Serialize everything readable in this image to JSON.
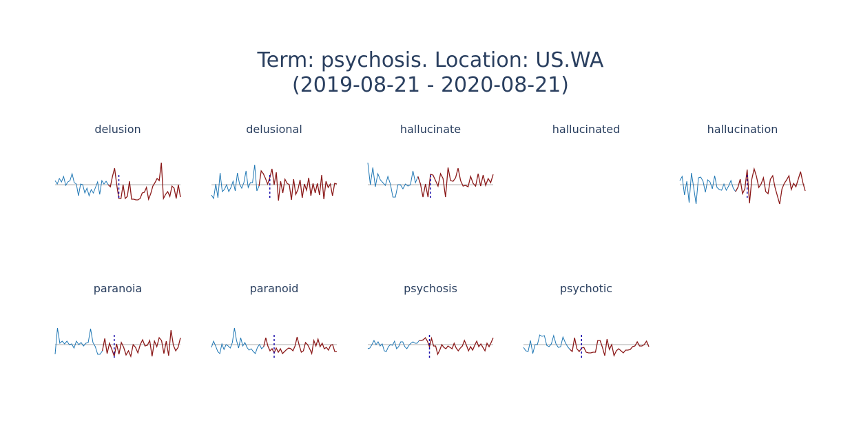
{
  "title": {
    "line1": "Term: psychosis. Location: US.WA",
    "line2": "(2019-08-21 - 2020-08-21)"
  },
  "colors": {
    "before": "#1f77b4",
    "after": "#8b1a1a",
    "baseline": "#c8c8c8",
    "marker": "#1a0dab",
    "text": "#2a3f5f"
  },
  "chart_data": [
    {
      "type": "line",
      "title": "delusion",
      "before": [
        0.6,
        0.1,
        0.9,
        0.4,
        1.2,
        -0.1,
        0.4,
        0.6,
        1.6,
        0.3,
        0.1,
        -1.6,
        0.1,
        0.0,
        -1.2,
        -0.5,
        -1.6,
        -0.7,
        -1.2,
        -0.4,
        0.4,
        -1.4,
        0.6,
        0.1,
        0.5,
        0.0
      ],
      "after": [
        -0.3,
        1.2,
        2.4,
        0.0,
        -2.0,
        -2.0,
        0.0,
        -2.0,
        -1.7,
        0.5,
        -2.1,
        -2.1,
        -2.2,
        -2.2,
        -2.0,
        -1.2,
        -1.1,
        -0.4,
        -2.1,
        -1.3,
        -0.2,
        0.3,
        0.9,
        0.6,
        3.2,
        -2.0,
        -1.4,
        -1.0,
        -1.7,
        -0.2,
        -0.5,
        -2.0,
        0.0,
        -1.8
      ]
    },
    {
      "type": "line",
      "title": "delusional",
      "before": [
        -1.5,
        -2.0,
        0.1,
        -1.9,
        1.7,
        -1.0,
        -0.7,
        0.0,
        -1.0,
        -0.4,
        0.5,
        -0.9,
        1.7,
        0.1,
        -0.5,
        0.3,
        2.0,
        -0.4,
        0.3,
        0.3,
        2.9,
        -0.9,
        -0.2
      ],
      "after": [
        2.0,
        1.6,
        0.9,
        0.1,
        1.0,
        2.3,
        0.0,
        1.8,
        -2.3,
        0.5,
        -1.2,
        0.8,
        0.2,
        0.0,
        -2.2,
        0.8,
        -1.4,
        -0.7,
        0.7,
        -1.9,
        0.1,
        -0.8,
        1.0,
        -1.6,
        0.2,
        -1.2,
        0.2,
        -1.5,
        1.4,
        -2.1,
        0.5,
        -0.4,
        0.1,
        -1.6,
        0.2,
        0.1
      ]
    },
    {
      "type": "line",
      "title": "hallucinate",
      "before": [
        3.2,
        0.0,
        2.5,
        -0.3,
        1.6,
        0.7,
        0.3,
        -0.1,
        1.2,
        0.1,
        -1.8,
        -1.8,
        0.0,
        0.0,
        -0.6,
        0.1,
        -0.2,
        0.0,
        2.0,
        0.3,
        1.2
      ],
      "after": [
        0.1,
        -1.8,
        0.1,
        -1.8,
        1.5,
        1.4,
        0.6,
        -0.2,
        1.6,
        0.9,
        -1.8,
        2.5,
        0.6,
        0.5,
        1.0,
        2.4,
        0.6,
        -0.2,
        -0.1,
        -0.3,
        1.2,
        0.2,
        -0.2,
        1.6,
        -0.2,
        1.4,
        -0.1,
        0.9,
        0.3,
        1.5
      ]
    },
    {
      "type": "line",
      "title": "hallucinated",
      "before": [],
      "after": []
    },
    {
      "type": "line",
      "title": "hallucination",
      "before": [
        0.6,
        1.2,
        -1.5,
        0.5,
        -2.6,
        1.7,
        -0.5,
        -2.8,
        1.0,
        1.1,
        0.5,
        -1.1,
        0.7,
        0.4,
        -0.6,
        1.3,
        -0.4,
        -0.7,
        -0.8,
        0.1,
        -0.8,
        -0.2,
        0.6,
        -0.5,
        -1.0
      ],
      "after": [
        -0.4,
        0.8,
        -1.3,
        -0.6,
        2.2,
        -2.7,
        0.8,
        2.3,
        1.2,
        -0.4,
        0.1,
        1.0,
        -1.0,
        -1.3,
        0.8,
        1.3,
        -0.4,
        -1.6,
        -2.8,
        -0.6,
        0.2,
        0.7,
        1.3,
        -0.7,
        0.2,
        -0.3,
        0.8,
        1.9,
        0.3,
        -0.9
      ]
    },
    {
      "type": "line",
      "title": "paranoia",
      "before": [
        -1.4,
        2.4,
        0.2,
        0.5,
        0.1,
        0.5,
        0.0,
        0.1,
        -0.5,
        0.5,
        0.0,
        0.3,
        -0.2,
        0.2,
        0.3,
        2.3,
        0.3,
        -0.3,
        -1.4,
        -1.4,
        -0.9
      ],
      "after": [
        0.9,
        -1.3,
        0.2,
        -0.7,
        -1.7,
        0.1,
        -1.4,
        0.3,
        -0.4,
        -1.5,
        -0.9,
        -1.7,
        0.0,
        -0.4,
        -1.2,
        0.0,
        0.7,
        -0.2,
        -0.1,
        0.6,
        -1.7,
        0.5,
        -0.3,
        1.0,
        0.6,
        -1.3,
        0.5,
        -1.6,
        2.1,
        -0.1,
        -0.9,
        -0.4,
        1.0
      ]
    },
    {
      "type": "line",
      "title": "paranoid",
      "before": [
        -0.4,
        0.5,
        -0.2,
        -1.0,
        -1.3,
        0.1,
        -0.7,
        0.0,
        -0.2,
        -0.5,
        0.3,
        2.4,
        0.6,
        -0.5,
        1.0,
        -0.2,
        0.3,
        -0.4,
        -0.8,
        -0.6,
        -1.0,
        -1.3,
        -0.4,
        0.0,
        -0.6,
        -0.3
      ],
      "after": [
        1.0,
        -0.2,
        -0.9,
        -0.6,
        -1.2,
        -0.5,
        -1.1,
        -0.6,
        -1.3,
        -1.0,
        -0.7,
        -0.5,
        -0.6,
        -0.9,
        -0.2,
        1.1,
        -0.1,
        -1.1,
        -0.9,
        0.3,
        0.0,
        -0.6,
        -1.3,
        0.6,
        -0.2,
        0.8,
        -0.3,
        0.2,
        -0.6,
        -0.4,
        -0.8,
        -0.1,
        0.0,
        -1.0,
        -1.0
      ]
    },
    {
      "type": "line",
      "title": "psychosis",
      "before": [
        -0.6,
        -0.5,
        0.0,
        0.6,
        0.0,
        0.4,
        -0.2,
        0.1,
        -0.9,
        -1.0,
        -0.3,
        0.0,
        -0.1,
        0.5,
        -0.6,
        -0.3,
        0.4,
        0.4,
        -0.3,
        -0.6,
        -0.1,
        0.2,
        0.4,
        0.2,
        0.2,
        0.6
      ],
      "after": [
        0.6,
        0.7,
        1.0,
        0.5,
        -0.3,
        0.9,
        -0.2,
        -0.2,
        -1.4,
        -0.8,
        0.0,
        -0.4,
        -0.6,
        -0.2,
        -0.4,
        -0.6,
        0.2,
        -0.5,
        -0.9,
        -0.5,
        -0.2,
        0.6,
        -0.1,
        -0.9,
        -0.3,
        -0.8,
        -0.1,
        0.5,
        -0.3,
        0.1,
        -0.4,
        -0.9,
        0.2,
        -0.3,
        0.3,
        1.0
      ]
    },
    {
      "type": "line",
      "title": "psychotic",
      "before": [
        -0.4,
        -0.9,
        -1.0,
        0.6,
        -1.3,
        0.0,
        0.0,
        1.4,
        1.2,
        1.3,
        -0.1,
        -0.3,
        0.1,
        1.3,
        0.1,
        -0.4,
        -0.3,
        1.1,
        0.3,
        -0.3,
        -0.7
      ],
      "after": [
        -1.0,
        1.0,
        -0.6,
        -1.0,
        -0.5,
        -0.4,
        -1.1,
        -1.2,
        -1.2,
        -1.1,
        -1.1,
        0.6,
        0.6,
        -0.4,
        -1.6,
        0.8,
        -0.7,
        0.0,
        -1.6,
        -0.9,
        -0.6,
        -0.9,
        -1.2,
        -0.8,
        -0.8,
        -0.7,
        -0.3,
        -0.2,
        0.4,
        -0.2,
        -0.2,
        0.0,
        0.5,
        -0.3
      ]
    }
  ]
}
